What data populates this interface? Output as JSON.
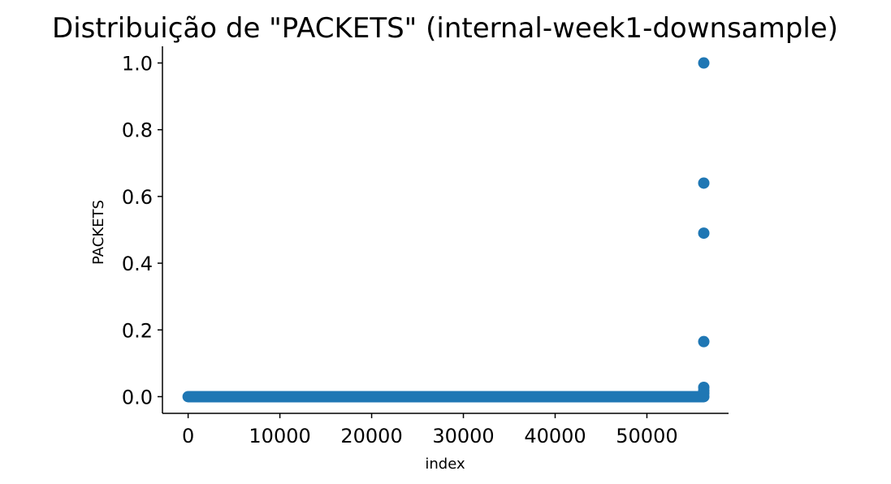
{
  "chart_data": {
    "type": "scatter",
    "title": "Distribuição de \"PACKETS\" (internal-week1-downsample)",
    "xlabel": "index",
    "ylabel": "PACKETS",
    "xlim": [
      -2800,
      58900
    ],
    "ylim": [
      -0.05,
      1.05
    ],
    "xticks": [
      0,
      10000,
      20000,
      30000,
      40000,
      50000
    ],
    "xtick_labels": [
      "0",
      "10000",
      "20000",
      "30000",
      "40000",
      "50000"
    ],
    "yticks": [
      0.0,
      0.2,
      0.4,
      0.6,
      0.8,
      1.0
    ],
    "ytick_labels": [
      "0.0",
      "0.2",
      "0.4",
      "0.6",
      "0.8",
      "1.0"
    ],
    "grid": false,
    "color": "#1f77b4",
    "baseline_band": {
      "x_start": 0,
      "x_end": 56200,
      "y": 0.0
    },
    "points": [
      {
        "x": 56200,
        "y": 1.0
      },
      {
        "x": 56200,
        "y": 0.64
      },
      {
        "x": 56200,
        "y": 0.49
      },
      {
        "x": 56200,
        "y": 0.165
      },
      {
        "x": 56200,
        "y": 0.028
      },
      {
        "x": 56200,
        "y": 0.018
      },
      {
        "x": 56200,
        "y": 0.01
      }
    ]
  }
}
